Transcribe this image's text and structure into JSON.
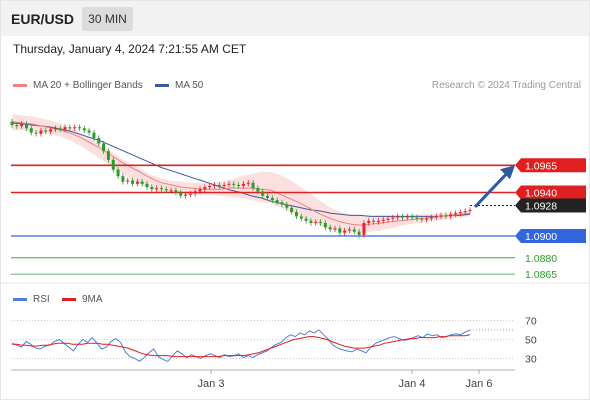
{
  "header": {
    "symbol": "EUR/USD",
    "timeframe": "30 MIN",
    "datetime": "Thursday, January 4, 2024 7:21:55 AM CET",
    "credit": "Research © 2024 Trading Central"
  },
  "colors": {
    "up": "#e8222a",
    "down": "#2a9a2a",
    "ma20": "#f08080",
    "ma50": "#3c5a9a",
    "bollinger_fill": "#fbd3d3",
    "resistance": "#e02020",
    "support_blue": "#3366dd",
    "support_green": "#2a9a2a",
    "last_price": "#222222",
    "forecast_arrow": "#2b5aa0",
    "rsi": "#4f7fdd",
    "rsi_ma": "#e02020"
  },
  "chart_data": [
    {
      "type": "candlestick",
      "title": "EUR/USD",
      "legend": [
        {
          "key": "ma20",
          "label": "MA 20 + Bollinger Bands"
        },
        {
          "key": "ma50",
          "label": "MA 50"
        }
      ],
      "ylim": [
        1.0855,
        1.1025
      ],
      "x_ticks": [
        "Jan 3",
        "Jan 4",
        "Jan 6"
      ],
      "close": [
        1.1002,
        1.1001,
        1.1003,
        1.0999,
        1.0995,
        1.0994,
        1.0997,
        1.0996,
        1.0998,
        1.0999,
        1.0998,
        1.1,
        1.0999,
        1.1,
        1.0999,
        1.0997,
        1.0995,
        1.099,
        1.0985,
        1.0978,
        1.097,
        1.0961,
        1.0955,
        1.095,
        1.0951,
        1.0948,
        1.095,
        1.0948,
        1.0945,
        1.0943,
        1.0944,
        1.0943,
        1.0942,
        1.0942,
        1.094,
        1.0937,
        1.0938,
        1.0939,
        1.0941,
        1.0943,
        1.0945,
        1.0946,
        1.0947,
        1.0946,
        1.0947,
        1.0948,
        1.0947,
        1.0946,
        1.0948,
        1.0949,
        1.0944,
        1.0941,
        1.0937,
        1.0935,
        1.0933,
        1.0931,
        1.0929,
        1.0926,
        1.0922,
        1.0918,
        1.0916,
        1.0914,
        1.0912,
        1.0913,
        1.0912,
        1.0908,
        1.0906,
        1.0907,
        1.0903,
        1.0905,
        1.0906,
        1.0904,
        1.0901,
        1.0912,
        1.0914,
        1.0913,
        1.0914,
        1.0915,
        1.0916,
        1.0917,
        1.0918,
        1.0917,
        1.0918,
        1.0917,
        1.0916,
        1.0915,
        1.0916,
        1.0917,
        1.0918,
        1.0919,
        1.0918,
        1.092,
        1.0921,
        1.0922,
        1.0923,
        1.0924
      ],
      "ma20": [
        1.1005,
        1.1004,
        1.1003,
        1.1001,
        1.0999,
        1.0997,
        1.0994,
        1.099,
        1.0985,
        1.098,
        1.0974,
        1.0968,
        1.0963,
        1.0958,
        1.0953,
        1.0949,
        1.0947,
        1.0945,
        1.0944,
        1.0943,
        1.0943,
        1.0943,
        1.0944,
        1.0944,
        1.0944,
        1.0943,
        1.0942,
        1.0938,
        1.0934,
        1.093,
        1.0925,
        1.092,
        1.0916,
        1.0913,
        1.0911,
        1.091,
        1.0911,
        1.0912,
        1.0913,
        1.0914,
        1.0915,
        1.0916,
        1.0917,
        1.0918,
        1.0919,
        1.092,
        1.0921
      ],
      "bollinger_upper": [
        1.1012,
        1.1011,
        1.101,
        1.1008,
        1.1006,
        1.1003,
        1.0999,
        1.0994,
        1.0989,
        1.0983,
        1.0977,
        1.0971,
        1.0966,
        1.0961,
        1.0956,
        1.0953,
        1.0951,
        1.095,
        1.0949,
        1.0949,
        1.0949,
        1.095,
        1.0952,
        1.0955,
        1.0957,
        1.0959,
        1.0959,
        1.0956,
        1.0951,
        1.0945,
        1.0939,
        1.0932,
        1.0926,
        1.0922,
        1.092,
        1.0919,
        1.0919,
        1.0919,
        1.0919,
        1.0919,
        1.0919,
        1.092,
        1.092,
        1.0921,
        1.0922,
        1.0922,
        1.0923
      ],
      "bollinger_lower": [
        1.0997,
        1.0997,
        1.0996,
        1.0995,
        1.0993,
        1.0991,
        1.0987,
        1.0982,
        1.0976,
        1.097,
        1.0964,
        1.0958,
        1.0952,
        1.0947,
        1.0943,
        1.094,
        1.0939,
        1.0939,
        1.0938,
        1.0938,
        1.0938,
        1.0937,
        1.0936,
        1.0935,
        1.0933,
        1.0931,
        1.093,
        1.0926,
        1.0922,
        1.0918,
        1.0913,
        1.0909,
        1.0906,
        1.0904,
        1.0903,
        1.0903,
        1.0904,
        1.0905,
        1.0907,
        1.0909,
        1.0911,
        1.0912,
        1.0914,
        1.0915,
        1.0916,
        1.0917,
        1.0918
      ],
      "ma50": [
        1.1004,
        1.1003,
        1.1002,
        1.1001,
        1.1,
        1.0998,
        1.0996,
        1.0993,
        1.099,
        1.0987,
        1.0983,
        1.0979,
        1.0975,
        1.0971,
        1.0967,
        1.0963,
        1.096,
        1.0957,
        1.0954,
        1.0951,
        1.0948,
        1.0945,
        1.0942,
        1.094,
        1.0937,
        1.0935,
        1.0932,
        1.093,
        1.0928,
        1.0926,
        1.0924,
        1.0923,
        1.0921,
        1.092,
        1.0919,
        1.0919,
        1.0918,
        1.0918,
        1.0918,
        1.0918,
        1.0918,
        1.0918,
        1.0918,
        1.0918,
        1.0919,
        1.0919,
        1.092
      ],
      "levels": [
        {
          "value": 1.0965,
          "label": "1.0965",
          "kind": "resistance"
        },
        {
          "value": 1.094,
          "label": "1.0940",
          "kind": "resistance"
        },
        {
          "value": 1.0928,
          "label": "1.0928",
          "kind": "last_price"
        },
        {
          "value": 1.09,
          "label": "1.0900",
          "kind": "support"
        },
        {
          "value": 1.088,
          "label": "1.0880",
          "kind": "support_minor"
        },
        {
          "value": 1.0865,
          "label": "1.0865",
          "kind": "support_minor"
        }
      ]
    },
    {
      "type": "line",
      "title": "RSI",
      "legend": [
        {
          "key": "rsi",
          "label": "RSI"
        },
        {
          "key": "rsi_ma",
          "label": "9MA"
        }
      ],
      "ylim": [
        20,
        80
      ],
      "y_ticks": [
        70,
        50,
        30
      ],
      "rsi": [
        46,
        44,
        42,
        48,
        45,
        41,
        40,
        43,
        44,
        48,
        50,
        46,
        42,
        38,
        45,
        50,
        47,
        52,
        46,
        40,
        42,
        48,
        51,
        47,
        37,
        32,
        30,
        27,
        31,
        36,
        40,
        32,
        29,
        27,
        33,
        38,
        35,
        31,
        34,
        32,
        30,
        33,
        35,
        33,
        31,
        34,
        32,
        33,
        35,
        31,
        33,
        31,
        34,
        36,
        38,
        42,
        45,
        47,
        52,
        55,
        53,
        57,
        55,
        59,
        57,
        60,
        55,
        50,
        44,
        41,
        39,
        38,
        37,
        40,
        38,
        36,
        42,
        46,
        48,
        50,
        52,
        53,
        51,
        49,
        50,
        52,
        54,
        52,
        56,
        54,
        55,
        52,
        53,
        55,
        56,
        55,
        58,
        60
      ],
      "rsi_ma": [
        45,
        45,
        44,
        44,
        43,
        43,
        44,
        44,
        45,
        46,
        46,
        46,
        45,
        45,
        45,
        46,
        46,
        46,
        45,
        45,
        44,
        43,
        42,
        41,
        39,
        37,
        35,
        34,
        33,
        33,
        33,
        33,
        32,
        32,
        32,
        32,
        32,
        32,
        32,
        32,
        32,
        32,
        33,
        33,
        33,
        33,
        33,
        34,
        35,
        36,
        38,
        40,
        42,
        44,
        46,
        48,
        50,
        51,
        52,
        53,
        53,
        52,
        51,
        49,
        47,
        45,
        43,
        42,
        41,
        41,
        41,
        42,
        43,
        44,
        46,
        47,
        48,
        49,
        50,
        51,
        51,
        52,
        52,
        52,
        52,
        53,
        53,
        54,
        54,
        54,
        54,
        55
      ]
    }
  ]
}
